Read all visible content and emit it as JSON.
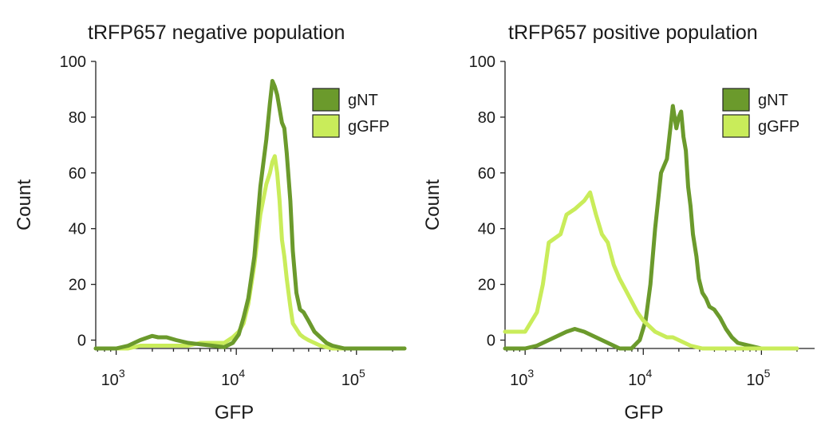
{
  "chart_data": [
    {
      "type": "line",
      "title": "tRFP657 negative population",
      "xlabel": "GFP",
      "ylabel": "Count",
      "xscale": "log",
      "xlim_log10": [
        2.83,
        5.4
      ],
      "ylim": [
        -3,
        100
      ],
      "yticks": [
        0,
        20,
        40,
        60,
        80,
        100
      ],
      "ytick_labels": [
        "0",
        "20",
        "40",
        "60",
        "80",
        "100"
      ],
      "xticks": [
        3,
        4,
        5
      ],
      "xtick_labels": [
        {
          "base": "10",
          "exp": "3"
        },
        {
          "base": "10",
          "exp": "4"
        },
        {
          "base": "10",
          "exp": "5"
        }
      ],
      "legend": [
        "gNT",
        "gGFP"
      ],
      "legend_position": "top-right",
      "series": [
        {
          "name": "gNT",
          "color": "#6b9a2c",
          "log10_x": [
            2.83,
            3.0,
            3.1,
            3.2,
            3.3,
            3.35,
            3.42,
            3.5,
            3.6,
            3.7,
            3.8,
            3.9,
            3.97,
            4.02,
            4.06,
            4.1,
            4.15,
            4.2,
            4.25,
            4.28,
            4.3,
            4.32,
            4.34,
            4.36,
            4.38,
            4.4,
            4.42,
            4.45,
            4.47,
            4.5,
            4.53,
            4.56,
            4.6,
            4.65,
            4.7,
            4.75,
            4.8,
            4.9,
            5.0,
            5.1,
            5.2,
            5.3,
            5.4
          ],
          "y": [
            -3,
            -3,
            -2,
            0,
            1.5,
            1,
            1,
            0,
            -1,
            -1.5,
            -2,
            -2.5,
            -1,
            2,
            8,
            15,
            30,
            55,
            72,
            85,
            93,
            91,
            88,
            83,
            78,
            76,
            67,
            50,
            32,
            17,
            11,
            10,
            7,
            3,
            1,
            -1,
            -2,
            -3,
            -3,
            -3,
            -3,
            -3,
            -3
          ]
        },
        {
          "name": "gGFP",
          "color": "#c9ec5a",
          "log10_x": [
            2.83,
            3.0,
            3.1,
            3.2,
            3.3,
            3.35,
            3.42,
            3.5,
            3.6,
            3.7,
            3.8,
            3.9,
            3.97,
            4.02,
            4.06,
            4.1,
            4.15,
            4.2,
            4.25,
            4.28,
            4.3,
            4.32,
            4.34,
            4.36,
            4.38,
            4.4,
            4.42,
            4.45,
            4.47,
            4.5,
            4.53,
            4.56,
            4.6,
            4.65,
            4.7,
            4.75,
            4.8,
            4.9,
            5.0,
            5.1,
            5.2,
            5.3,
            5.4
          ],
          "y": [
            -3,
            -3,
            -3,
            -2,
            -2,
            -2,
            -2,
            -2,
            -2,
            -1,
            -1,
            -1,
            1,
            3,
            6,
            13,
            27,
            45,
            56,
            60,
            64,
            66,
            60,
            50,
            36,
            30,
            22,
            12,
            6,
            4,
            2,
            1,
            0,
            -1,
            -2,
            -2.5,
            -3,
            -3,
            -3,
            -3,
            -3,
            -3,
            -3
          ]
        }
      ]
    },
    {
      "type": "line",
      "title": "tRFP657 positive population",
      "xlabel": "GFP",
      "ylabel": "Count",
      "xscale": "log",
      "xlim_log10": [
        2.83,
        5.45
      ],
      "ylim": [
        -3,
        100
      ],
      "yticks": [
        0,
        20,
        40,
        60,
        80,
        100
      ],
      "ytick_labels": [
        "0",
        "20",
        "40",
        "60",
        "80",
        "100"
      ],
      "xticks": [
        3,
        4,
        5
      ],
      "xtick_labels": [
        {
          "base": "10",
          "exp": "3"
        },
        {
          "base": "10",
          "exp": "4"
        },
        {
          "base": "10",
          "exp": "5"
        }
      ],
      "legend": [
        "gNT",
        "gGFP"
      ],
      "legend_position": "top-right",
      "series": [
        {
          "name": "gNT",
          "color": "#6b9a2c",
          "log10_x": [
            2.83,
            3.0,
            3.1,
            3.2,
            3.3,
            3.35,
            3.42,
            3.5,
            3.6,
            3.7,
            3.8,
            3.9,
            3.97,
            4.02,
            4.06,
            4.1,
            4.15,
            4.2,
            4.25,
            4.28,
            4.3,
            4.32,
            4.34,
            4.36,
            4.38,
            4.4,
            4.42,
            4.45,
            4.47,
            4.5,
            4.53,
            4.56,
            4.6,
            4.65,
            4.7,
            4.75,
            4.8,
            4.9,
            5.0,
            5.1,
            5.2,
            5.3
          ],
          "y": [
            -3,
            -3,
            -2,
            0,
            2,
            3,
            4,
            3,
            1,
            -1,
            -3,
            -3,
            0,
            7,
            20,
            40,
            60,
            65,
            84,
            76,
            80,
            82,
            73,
            68,
            55,
            48,
            38,
            30,
            22,
            17,
            15,
            12,
            11,
            8,
            4,
            1,
            -1,
            -2,
            -3,
            -3,
            -3,
            -3
          ]
        },
        {
          "name": "gGFP",
          "color": "#c9ec5a",
          "log10_x": [
            2.83,
            2.88,
            2.95,
            3.0,
            3.1,
            3.15,
            3.2,
            3.3,
            3.35,
            3.42,
            3.5,
            3.55,
            3.6,
            3.65,
            3.7,
            3.75,
            3.8,
            3.85,
            3.9,
            3.95,
            4.0,
            4.05,
            4.1,
            4.15,
            4.2,
            4.25,
            4.3,
            4.35,
            4.4,
            4.5,
            4.6,
            4.7,
            4.8,
            4.9,
            5.0,
            5.1,
            5.2,
            5.3
          ],
          "y": [
            3,
            3,
            3,
            3,
            10,
            20,
            35,
            38,
            45,
            47,
            50,
            53,
            45,
            38,
            35,
            27,
            22,
            18,
            14,
            10,
            7,
            5,
            3,
            2,
            1,
            1,
            0,
            -1,
            -2,
            -3,
            -3,
            -3,
            -3,
            -3,
            -3,
            -3,
            -3,
            -3
          ]
        }
      ]
    }
  ]
}
